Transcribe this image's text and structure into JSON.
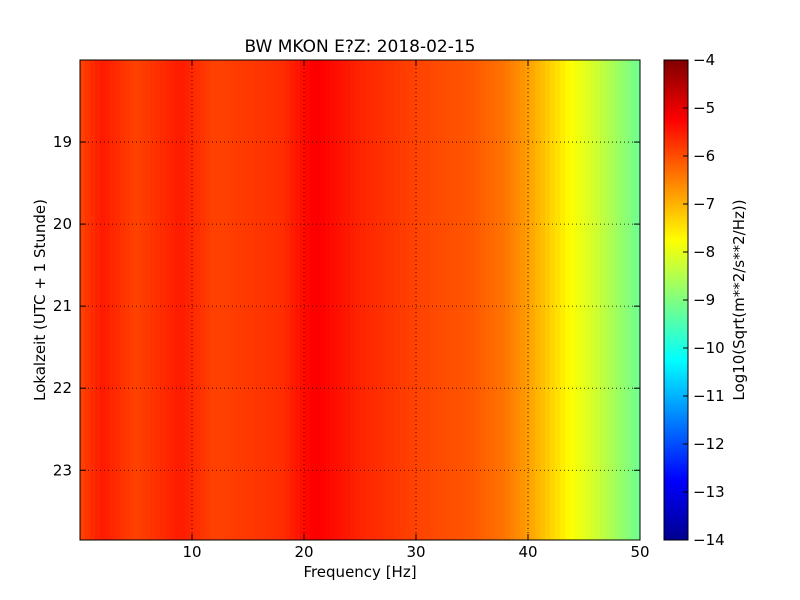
{
  "chart_data": {
    "type": "heatmap",
    "title": "BW MKON E?Z: 2018-02-15",
    "xlabel": "Frequency [Hz]",
    "ylabel": "Lokalzeit (UTC + 1 Stunde)",
    "xlim": [
      0,
      50
    ],
    "ylim": [
      18.0,
      23.85
    ],
    "y_inverted": true,
    "x_ticks": [
      10,
      20,
      30,
      40,
      50
    ],
    "y_ticks": [
      19,
      20,
      21,
      22,
      23
    ],
    "grid": true,
    "colormap": "jet",
    "colorbar": {
      "label": "Log10(Sqrt(m**2/s**2/Hz))",
      "range": [
        -14,
        -4
      ],
      "ticks": [
        -4,
        -5,
        -6,
        -7,
        -8,
        -9,
        -10,
        -11,
        -12,
        -13,
        -14
      ]
    },
    "frequency_profile": {
      "frequency_hz": [
        0,
        2,
        5,
        9,
        12,
        18,
        21,
        25,
        30,
        35,
        38,
        40,
        42,
        44,
        46,
        48,
        50
      ],
      "log10_amplitude": [
        -5.9,
        -5.5,
        -5.9,
        -5.5,
        -5.9,
        -5.7,
        -5.2,
        -5.6,
        -5.9,
        -6.1,
        -6.4,
        -6.8,
        -7.3,
        -7.8,
        -8.2,
        -8.7,
        -9.2
      ]
    }
  }
}
